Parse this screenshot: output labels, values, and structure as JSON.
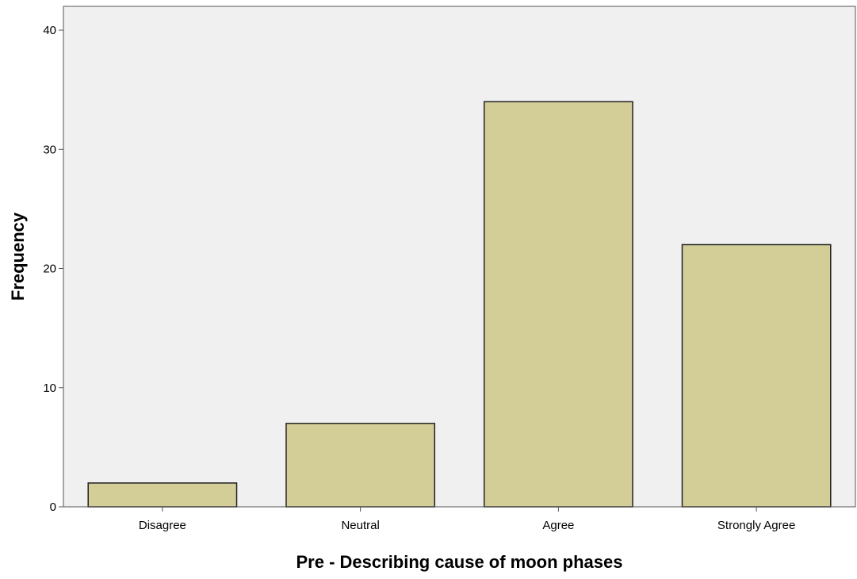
{
  "chart_data": {
    "type": "bar",
    "title": "",
    "xlabel": "Pre - Describing cause of moon phases",
    "ylabel": "Frequency",
    "categories": [
      "Disagree",
      "Neutral",
      "Agree",
      "Strongly Agree"
    ],
    "values": [
      2,
      7,
      34,
      22
    ],
    "ylim": [
      0,
      42
    ],
    "yticks": [
      0,
      10,
      20,
      30,
      40
    ],
    "grid": false,
    "legend": "none"
  },
  "colors": {
    "plot_background": "#f0f0f0",
    "bar_fill": "#d3ce97",
    "bar_stroke": "#222222",
    "axis": "#555555"
  }
}
